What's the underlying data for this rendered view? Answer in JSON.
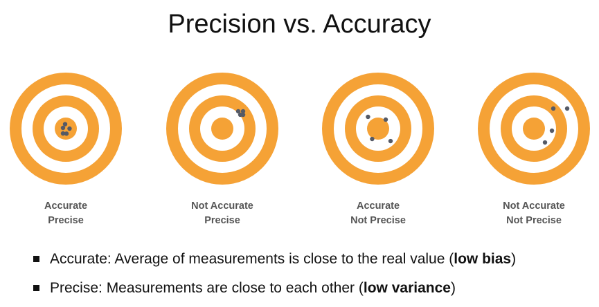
{
  "title": "Precision vs. Accuracy",
  "colors": {
    "ring": "#f5a236",
    "gap": "#ffffff",
    "dot": "#555a66"
  },
  "targets": [
    {
      "line1": "Accurate",
      "line2": "Precise",
      "dots": [
        [
          -0.28,
          -0.07
        ],
        [
          -0.07,
          -0.45
        ],
        [
          0.38,
          0.0
        ],
        [
          -0.28,
          0.49
        ],
        [
          0.07,
          0.51
        ]
      ]
    },
    {
      "line1": "Not Accurate",
      "line2": "Precise",
      "dots": [
        [
          1.61,
          -1.75
        ],
        [
          2.1,
          -1.75
        ],
        [
          1.82,
          -1.4
        ],
        [
          2.1,
          -1.4
        ]
      ]
    },
    {
      "line1": "Accurate",
      "line2": "Not Precise",
      "dots": [
        [
          -1.02,
          -1.19
        ],
        [
          0.77,
          -0.91
        ],
        [
          -0.6,
          1.05
        ],
        [
          1.26,
          1.26
        ]
      ]
    },
    {
      "line1": "Not Accurate",
      "line2": "Not Precise",
      "dots": [
        [
          1.96,
          -2.03
        ],
        [
          3.36,
          -2.03
        ],
        [
          1.82,
          0.21
        ],
        [
          1.12,
          1.4
        ]
      ]
    }
  ],
  "bullets": [
    {
      "text": "Accurate: Average of measurements is close to the real value (",
      "bold": "low bias",
      "end": ")"
    },
    {
      "text": "Precise: Measurements are close to each other (",
      "bold": "low variance",
      "end": ")"
    }
  ]
}
